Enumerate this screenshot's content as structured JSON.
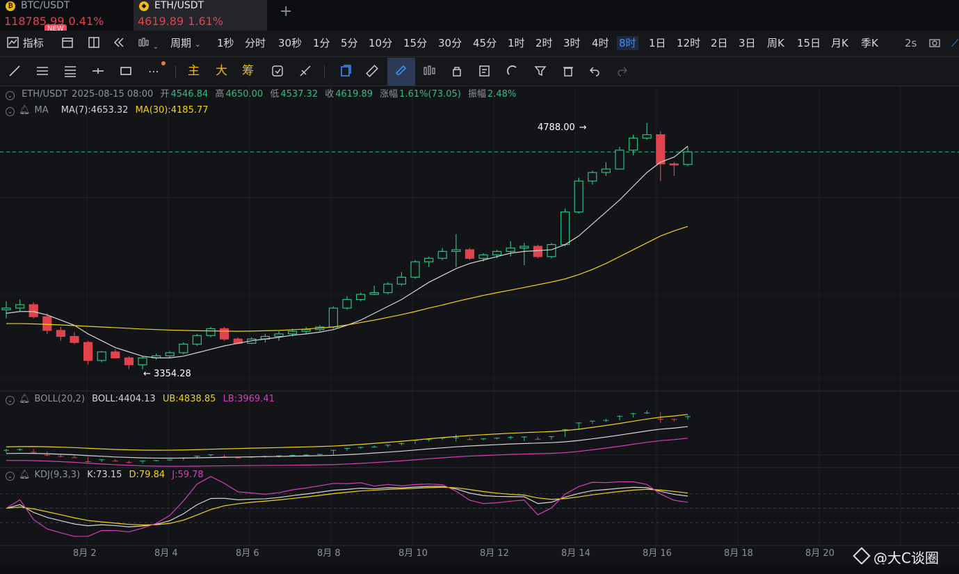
{
  "tabs": [
    {
      "pair": "BTC/USDT",
      "price": "118785.99",
      "change": "0.41%",
      "badge": "NEW"
    },
    {
      "pair": "ETH/USDT",
      "price": "4619.89",
      "change": "1.61%"
    }
  ],
  "intervals": [
    "指标",
    "周期",
    "1秒",
    "分时",
    "30秒",
    "1分",
    "5分",
    "10分",
    "15分",
    "30分",
    "45分",
    "1时",
    "2时",
    "3时",
    "4时",
    "8时",
    "1日",
    "12时",
    "2日",
    "3日",
    "周K",
    "15日",
    "月K",
    "季K",
    "2s"
  ],
  "active_interval": "8时",
  "drawtools": {
    "main": "主",
    "big": "大",
    "chips": "筹"
  },
  "ohlc": {
    "symbol": "ETH/USDT",
    "date": "2025-08-15 08:00",
    "open_label": "开",
    "open": "4546.84",
    "high_label": "高",
    "high": "4650.00",
    "low_label": "低",
    "low": "4537.32",
    "close_label": "收",
    "close": "4619.89",
    "chg_label": "涨幅",
    "chg": "1.61%(73.05)",
    "amp_label": "振幅",
    "amp": "2.48%"
  },
  "ma": {
    "name": "MA",
    "ma7": "MA(7):4653.32",
    "ma30": "MA(30):4185.77"
  },
  "boll": {
    "name": "BOLL(20,2)",
    "boll": "BOLL:4404.13",
    "ub": "UB:4838.85",
    "lb": "LB:3969.41"
  },
  "kdj": {
    "name": "KDJ(9,3,3)",
    "k": "K:73.15",
    "d": "D:79.84",
    "j": "J:59.78"
  },
  "annotations": {
    "high": "4788.00",
    "low": "3354.28"
  },
  "xaxis": [
    "8月 2",
    "8月 4",
    "8月 6",
    "8月 8",
    "8月 10",
    "8月 12",
    "8月 14",
    "8月 16",
    "8月 18",
    "8月 20"
  ],
  "watermark": "@大C谈圈",
  "colors": {
    "up": "#2ebd85",
    "down": "#e0424e",
    "ma7": "#d6d6d6",
    "ma30": "#f0d21e",
    "lb": "#d63fb8",
    "accent": "#3b8cff"
  },
  "chart_data": {
    "type": "candlestick",
    "timeframe": "8时",
    "last_price": 4619.89,
    "max_annotation": 4788.0,
    "min_annotation": 3354.28,
    "candles": [
      [
        3700,
        3750,
        3650,
        3710
      ],
      [
        3710,
        3760,
        3690,
        3730
      ],
      [
        3730,
        3745,
        3650,
        3660
      ],
      [
        3660,
        3680,
        3560,
        3580
      ],
      [
        3580,
        3600,
        3520,
        3545
      ],
      [
        3545,
        3570,
        3500,
        3510
      ],
      [
        3510,
        3520,
        3380,
        3405
      ],
      [
        3405,
        3460,
        3395,
        3455
      ],
      [
        3455,
        3470,
        3420,
        3420
      ],
      [
        3420,
        3430,
        3355,
        3380
      ],
      [
        3380,
        3430,
        3354,
        3420
      ],
      [
        3420,
        3445,
        3410,
        3432
      ],
      [
        3432,
        3460,
        3420,
        3450
      ],
      [
        3450,
        3510,
        3440,
        3500
      ],
      [
        3500,
        3560,
        3490,
        3550
      ],
      [
        3550,
        3600,
        3540,
        3590
      ],
      [
        3590,
        3600,
        3520,
        3530
      ],
      [
        3530,
        3540,
        3500,
        3505
      ],
      [
        3505,
        3540,
        3500,
        3530
      ],
      [
        3530,
        3560,
        3510,
        3545
      ],
      [
        3545,
        3575,
        3520,
        3560
      ],
      [
        3560,
        3590,
        3545,
        3575
      ],
      [
        3575,
        3600,
        3560,
        3585
      ],
      [
        3585,
        3610,
        3575,
        3600
      ],
      [
        3600,
        3720,
        3590,
        3710
      ],
      [
        3710,
        3780,
        3700,
        3760
      ],
      [
        3760,
        3800,
        3750,
        3790
      ],
      [
        3790,
        3840,
        3785,
        3800
      ],
      [
        3800,
        3860,
        3790,
        3850
      ],
      [
        3850,
        3920,
        3840,
        3890
      ],
      [
        3890,
        3990,
        3880,
        3980
      ],
      [
        3980,
        4010,
        3950,
        4000
      ],
      [
        4000,
        4060,
        3990,
        4040
      ],
      [
        4040,
        4140,
        3950,
        4050
      ],
      [
        4050,
        4060,
        3990,
        4000
      ],
      [
        4000,
        4030,
        3980,
        4020
      ],
      [
        4020,
        4050,
        4000,
        4040
      ],
      [
        4040,
        4100,
        4010,
        4060
      ],
      [
        4060,
        4090,
        3960,
        4070
      ],
      [
        4070,
        4080,
        4000,
        4010
      ],
      [
        4010,
        4090,
        4000,
        4080
      ],
      [
        4080,
        4290,
        4070,
        4270
      ],
      [
        4270,
        4470,
        4260,
        4450
      ],
      [
        4450,
        4510,
        4430,
        4500
      ],
      [
        4500,
        4560,
        4480,
        4520
      ],
      [
        4520,
        4650,
        4520,
        4630
      ],
      [
        4630,
        4720,
        4600,
        4700
      ],
      [
        4700,
        4788,
        4690,
        4720
      ],
      [
        4720,
        4740,
        4450,
        4550
      ],
      [
        4550,
        4560,
        4480,
        4546
      ],
      [
        4546.84,
        4650,
        4537.32,
        4619.89
      ]
    ],
    "ma7": [
      3680,
      3690,
      3690,
      3670,
      3640,
      3610,
      3560,
      3520,
      3480,
      3455,
      3430,
      3420,
      3420,
      3430,
      3450,
      3470,
      3490,
      3505,
      3520,
      3530,
      3540,
      3552,
      3560,
      3570,
      3585,
      3610,
      3640,
      3680,
      3720,
      3760,
      3810,
      3860,
      3900,
      3940,
      3970,
      3990,
      4010,
      4030,
      4040,
      4045,
      4050,
      4080,
      4130,
      4200,
      4270,
      4340,
      4420,
      4500,
      4560,
      4590,
      4653
    ],
    "ma30": [
      3620,
      3620,
      3618,
      3615,
      3612,
      3608,
      3604,
      3600,
      3596,
      3592,
      3588,
      3585,
      3582,
      3580,
      3578,
      3577,
      3576,
      3575,
      3576,
      3578,
      3580,
      3584,
      3588,
      3594,
      3600,
      3612,
      3626,
      3640,
      3656,
      3672,
      3690,
      3710,
      3728,
      3748,
      3766,
      3784,
      3800,
      3815,
      3830,
      3846,
      3862,
      3880,
      3905,
      3935,
      3970,
      4010,
      4050,
      4090,
      4130,
      4160,
      4185.77
    ],
    "boll": {
      "mid_last": 4404.13,
      "ub_last": 4838.85,
      "lb_last": 3969.41
    },
    "kdj": {
      "k_last": 73.15,
      "d_last": 79.84,
      "j_last": 59.78
    }
  }
}
